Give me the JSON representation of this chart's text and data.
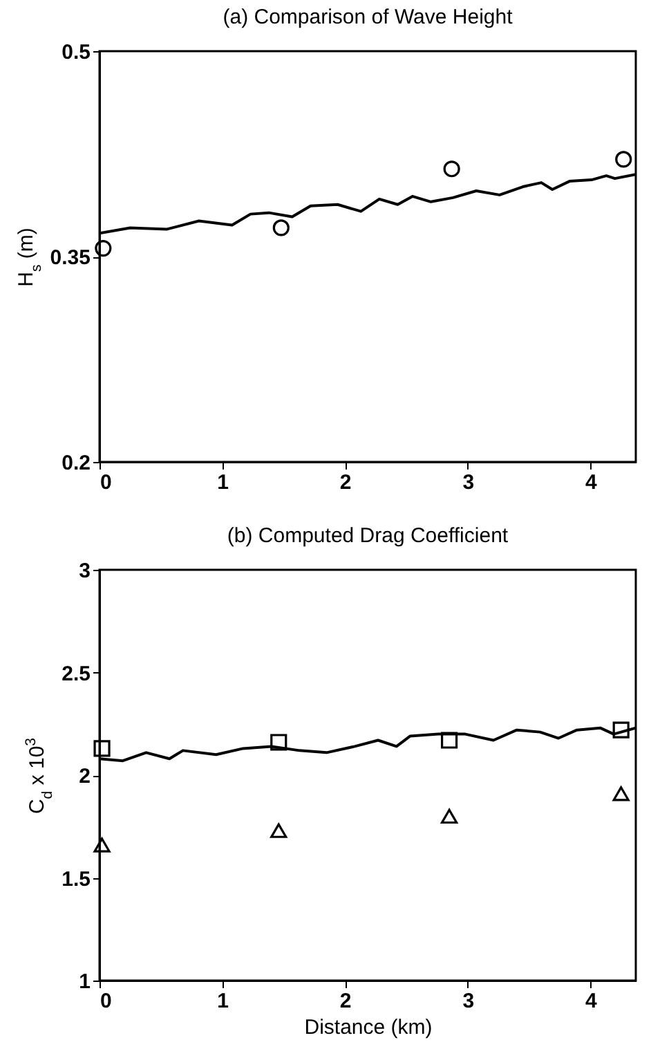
{
  "chart_data": [
    {
      "type": "line",
      "title": "(a) Comparison of Wave Height",
      "ylabel": "H$_{s}$ (m)",
      "xlim": [
        0,
        4.37
      ],
      "xticks": [
        0,
        1,
        2,
        3,
        4
      ],
      "ylim": [
        0.2,
        0.5
      ],
      "yticks": [
        0.2,
        0.35,
        0.5
      ],
      "grid": false,
      "series": [
        {
          "color": "#000000",
          "line_style": "solid",
          "marker": "none",
          "x": [
            0,
            0.25,
            0.55,
            0.81,
            1.08,
            1.23,
            1.38,
            1.57,
            1.72,
            1.94,
            2.13,
            2.28,
            2.43,
            2.55,
            2.7,
            2.88,
            3.07,
            3.26,
            3.45,
            3.6,
            3.69,
            3.83,
            4.01,
            4.13,
            4.2,
            4.37
          ],
          "values": [
            0.367,
            0.371,
            0.37,
            0.376,
            0.373,
            0.381,
            0.382,
            0.379,
            0.387,
            0.388,
            0.383,
            0.392,
            0.388,
            0.394,
            0.39,
            0.393,
            0.398,
            0.395,
            0.401,
            0.404,
            0.399,
            0.405,
            0.406,
            0.409,
            0.407,
            0.41
          ]
        },
        {
          "type": "scatter",
          "color": "#000000",
          "marker": "circle",
          "x": [
            0.03,
            1.48,
            2.87,
            4.27
          ],
          "values": [
            0.356,
            0.371,
            0.414,
            0.421
          ]
        }
      ]
    },
    {
      "type": "line",
      "title": "(b) Computed Drag Coefficient",
      "xlabel": "Distance (km)",
      "ylabel": "C$_{d}$ x 10$^{3}$",
      "xlim": [
        0,
        4.37
      ],
      "xticks": [
        0,
        1,
        2,
        3,
        4
      ],
      "ylim": [
        1,
        3
      ],
      "yticks": [
        1,
        1.5,
        2,
        2.5,
        3
      ],
      "grid": false,
      "series": [
        {
          "color": "#000000",
          "line_style": "solid",
          "marker": "none",
          "x": [
            0,
            0.19,
            0.38,
            0.57,
            0.68,
            0.95,
            1.17,
            1.4,
            1.63,
            1.85,
            2.08,
            2.27,
            2.42,
            2.53,
            2.76,
            2.98,
            3.21,
            3.4,
            3.59,
            3.74,
            3.89,
            4.08,
            4.19,
            4.37
          ],
          "values": [
            2.08,
            2.07,
            2.11,
            2.08,
            2.12,
            2.1,
            2.13,
            2.14,
            2.12,
            2.11,
            2.14,
            2.17,
            2.14,
            2.19,
            2.2,
            2.2,
            2.17,
            2.22,
            2.21,
            2.18,
            2.22,
            2.23,
            2.2,
            2.23
          ]
        },
        {
          "type": "scatter",
          "color": "#000000",
          "marker": "square",
          "x": [
            0.02,
            1.46,
            2.85,
            4.25
          ],
          "values": [
            2.13,
            2.16,
            2.17,
            2.22
          ]
        },
        {
          "type": "scatter",
          "color": "#000000",
          "marker": "triangle",
          "x": [
            0.02,
            1.46,
            2.85,
            4.25
          ],
          "values": [
            1.66,
            1.73,
            1.8,
            1.91
          ]
        }
      ]
    }
  ]
}
